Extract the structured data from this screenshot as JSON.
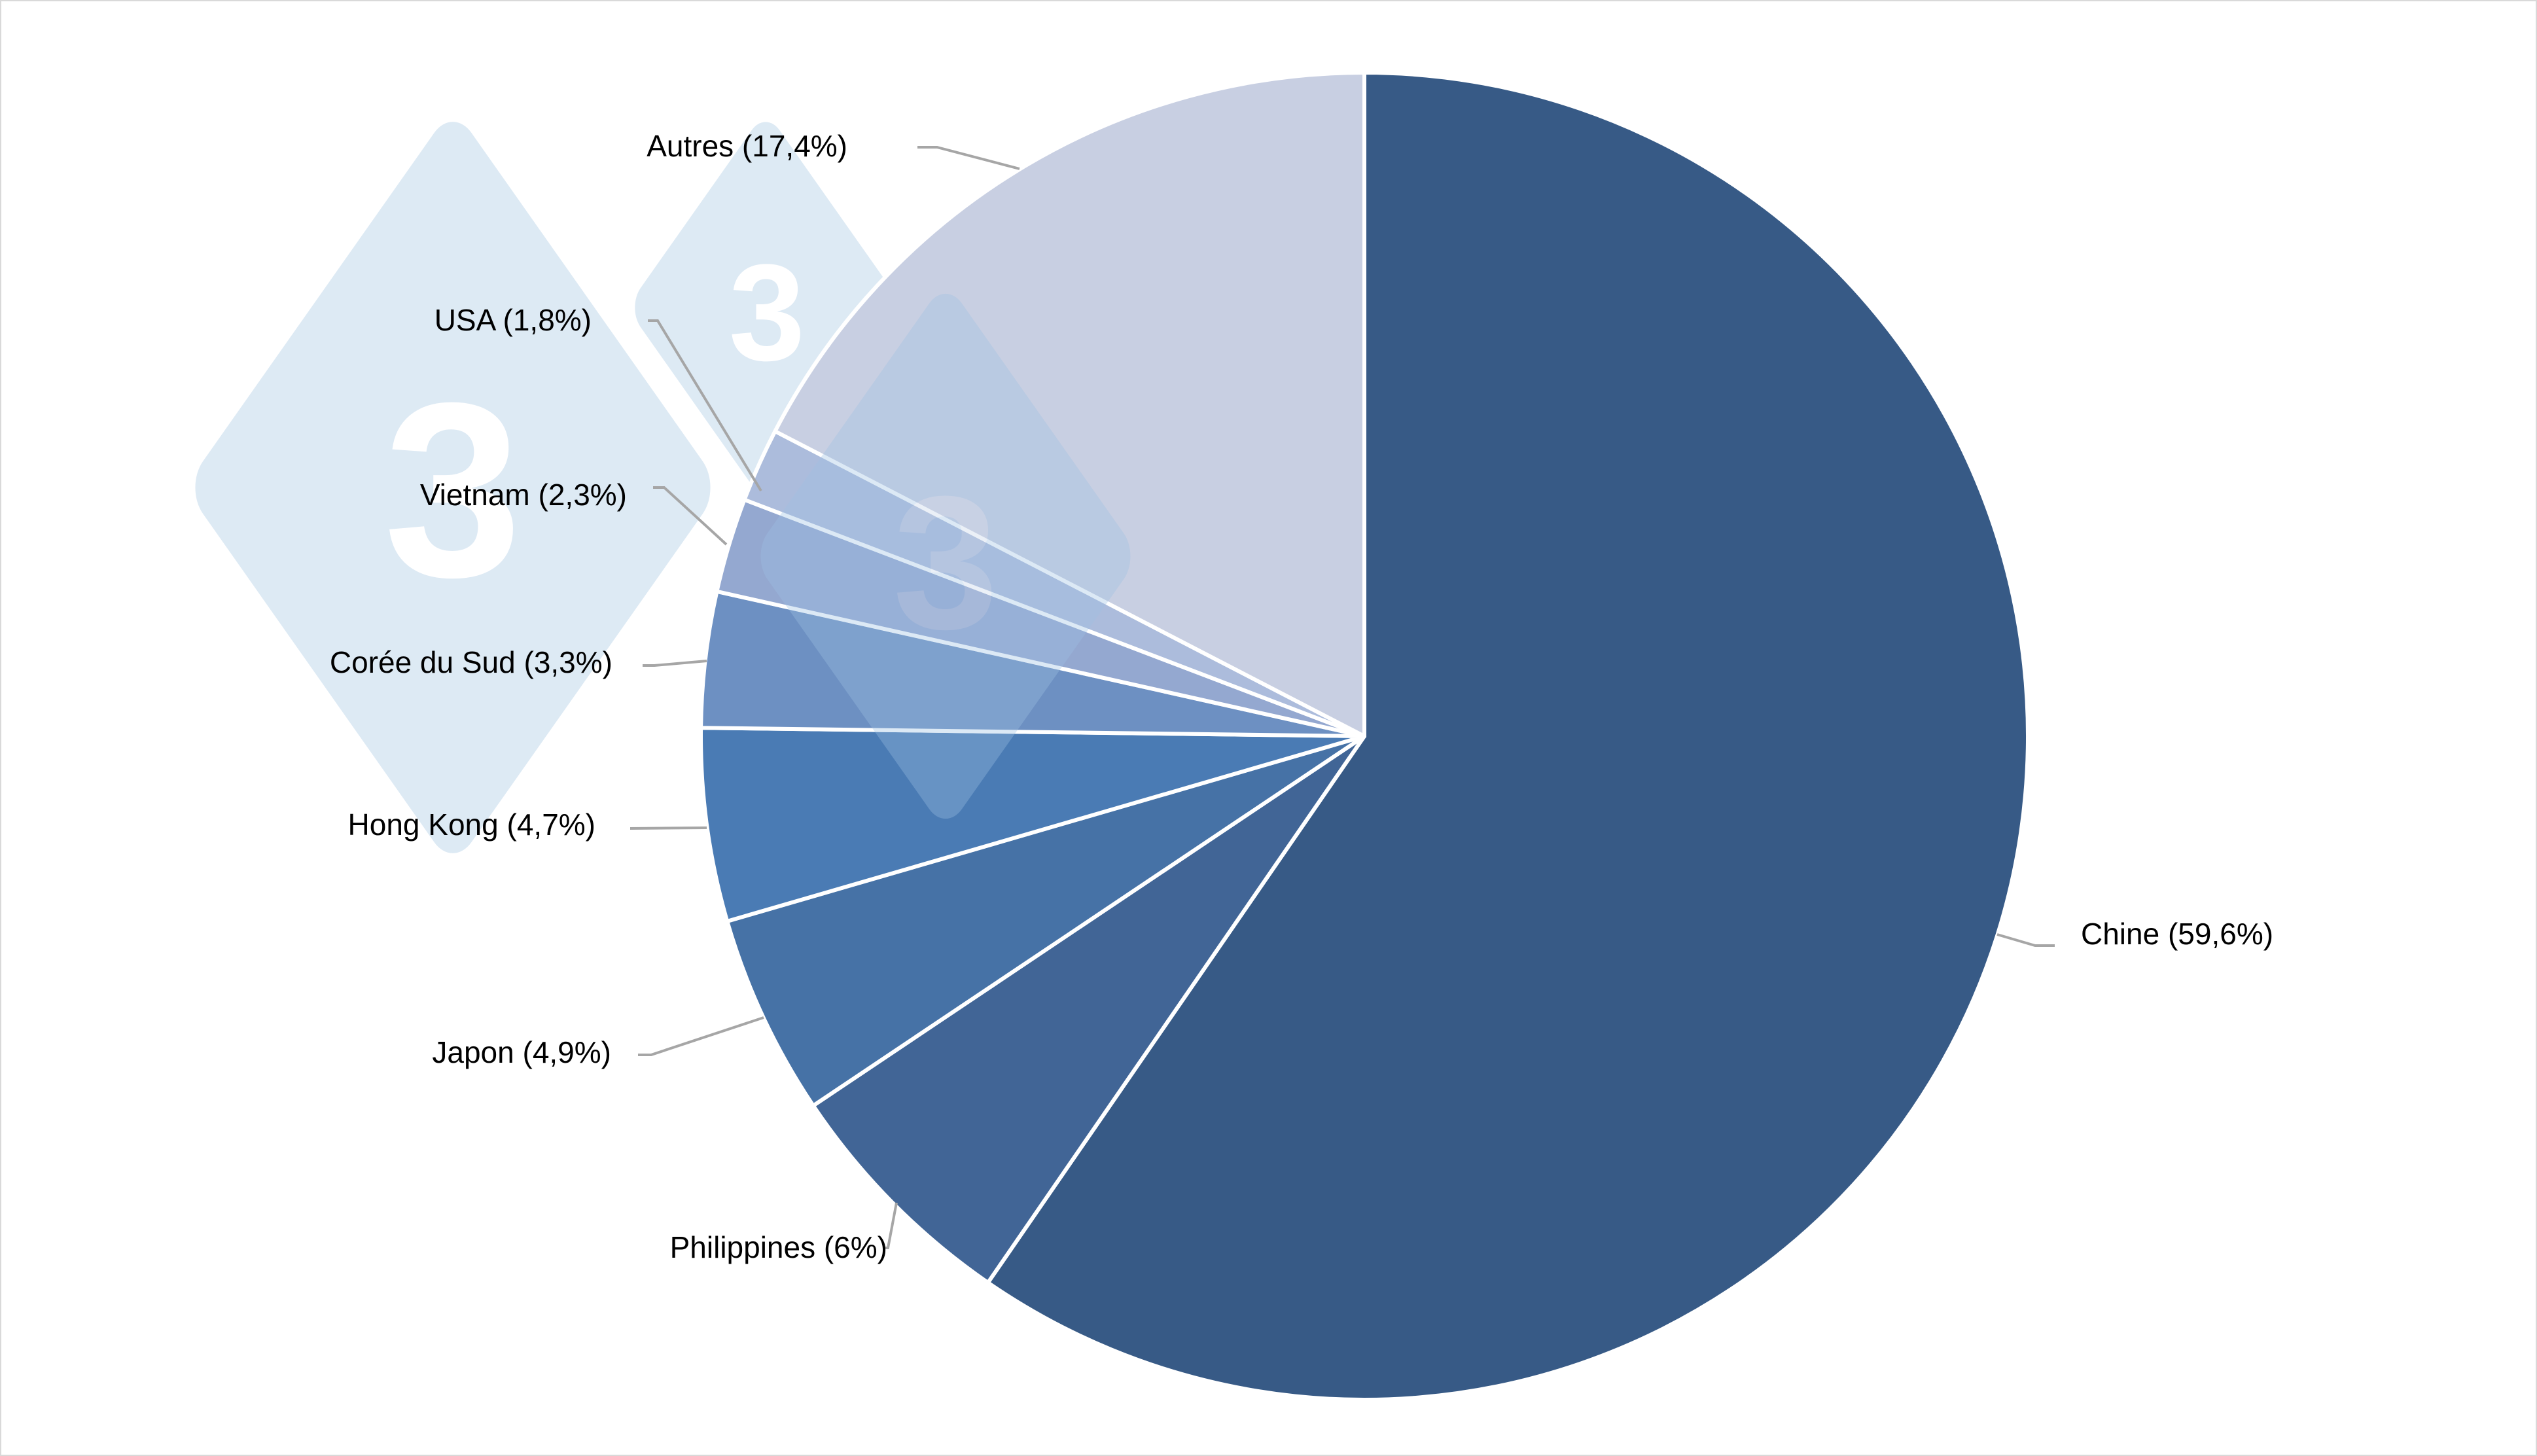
{
  "chart_data": {
    "type": "pie",
    "title": "",
    "start_angle": "12 o'clock, clockwise",
    "slices": [
      {
        "label": "Chine",
        "display": "Chine (59,6%)",
        "value": 59.6,
        "color": "#375a86"
      },
      {
        "label": "Philippines",
        "display": "Philippines (6%)",
        "value": 6.0,
        "color": "#416596"
      },
      {
        "label": "Japon",
        "display": "Japon (4,9%)",
        "value": 4.9,
        "color": "#4672a6"
      },
      {
        "label": "Hong Kong",
        "display": "Hong Kong (4,7%)",
        "value": 4.7,
        "color": "#4a7bb4"
      },
      {
        "label": "Corée du Sud",
        "display": "Corée du Sud (3,3%)",
        "value": 3.3,
        "color": "#6d90c2"
      },
      {
        "label": "Vietnam",
        "display": "Vietnam (2,3%)",
        "value": 2.3,
        "color": "#94a8d0"
      },
      {
        "label": "USA",
        "display": "USA (1,8%)",
        "value": 1.8,
        "color": "#acbcdc"
      },
      {
        "label": "Autres",
        "display": "Autres (17,4%)",
        "value": 17.4,
        "color": "#c8cfe2"
      }
    ],
    "legend": "none (callout labels with leader lines)",
    "watermark": "3tres3 logo diamonds"
  },
  "watermark": {
    "glyph": "3"
  }
}
